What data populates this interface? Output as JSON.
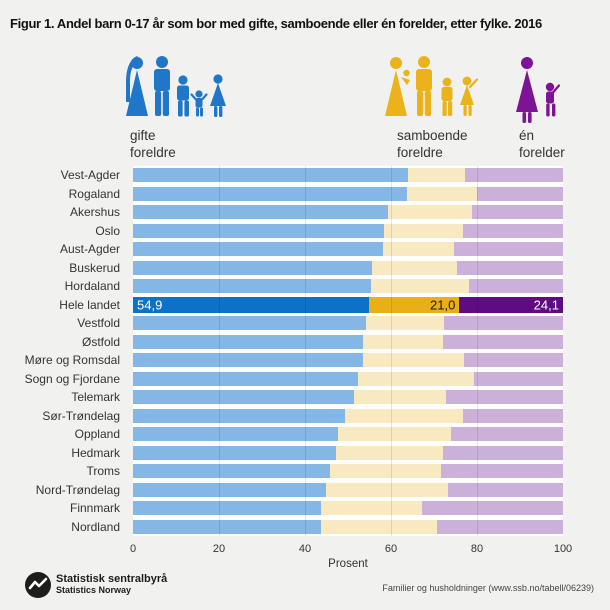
{
  "figure": {
    "title": "Figur 1. Andel barn 0-17 år som bor med gifte, samboende eller én forelder, etter fylke. 2016"
  },
  "legend": {
    "items": [
      {
        "id": "gifte",
        "line1": "gifte",
        "line2": "foreldre",
        "icon": "married-family-icon"
      },
      {
        "id": "samboende",
        "line1": "samboende",
        "line2": "foreldre",
        "icon": "cohabiting-family-icon"
      },
      {
        "id": "en-forelder",
        "line1": "én",
        "line2": "forelder",
        "icon": "single-parent-icon"
      }
    ]
  },
  "axis": {
    "xlabel": "Prosent",
    "ticks": [
      0,
      20,
      40,
      60,
      80,
      100
    ]
  },
  "chart_data": {
    "type": "bar",
    "stacked": true,
    "orientation": "horizontal",
    "xlim": [
      0,
      100
    ],
    "gridlines": [
      20,
      40,
      60,
      80
    ],
    "series": [
      {
        "key": "gifte-foreldre",
        "name": "gifte foreldre"
      },
      {
        "key": "samboende-foreldre",
        "name": "samboende foreldre"
      },
      {
        "key": "en-forelder",
        "name": "én forelder"
      }
    ],
    "colors": {
      "light": [
        "#85b7e6",
        "#f9e9c0",
        "#cbb1d9"
      ],
      "dark": [
        "#0d72c6",
        "#e9af19",
        "#5f0c82"
      ],
      "value_label_colors": [
        "#ffffff",
        "#1a1a1a",
        "#ffffff"
      ],
      "icons": {
        "married": "#2076c8",
        "cohabiting": "#eab319",
        "single": "#7d1395"
      },
      "background": "#f1f1ef"
    },
    "rows": [
      {
        "name": "Vest-Agder",
        "values": [
          64.0,
          13.2,
          22.8
        ],
        "highlight": false
      },
      {
        "name": "Rogaland",
        "values": [
          63.7,
          16.3,
          20.0
        ],
        "highlight": false
      },
      {
        "name": "Akershus",
        "values": [
          59.3,
          19.5,
          21.2
        ],
        "highlight": false
      },
      {
        "name": "Oslo",
        "values": [
          58.3,
          18.4,
          23.3
        ],
        "highlight": false
      },
      {
        "name": "Aust-Agder",
        "values": [
          58.2,
          16.5,
          25.3
        ],
        "highlight": false
      },
      {
        "name": "Buskerud",
        "values": [
          55.5,
          19.8,
          24.7
        ],
        "highlight": false
      },
      {
        "name": "Hordaland",
        "values": [
          55.3,
          22.8,
          21.9
        ],
        "highlight": false
      },
      {
        "name": "Hele landet",
        "values": [
          54.9,
          21.0,
          24.1
        ],
        "highlight": true,
        "value_labels": [
          "54,9",
          "21,0",
          "24,1"
        ]
      },
      {
        "name": "Vestfold",
        "values": [
          54.2,
          18.1,
          27.7
        ],
        "highlight": false
      },
      {
        "name": "Østfold",
        "values": [
          53.6,
          18.5,
          27.9
        ],
        "highlight": false
      },
      {
        "name": "Møre og Romsdal",
        "values": [
          53.5,
          23.5,
          23.0
        ],
        "highlight": false
      },
      {
        "name": "Sogn og Fjordane",
        "values": [
          52.3,
          27.0,
          20.7
        ],
        "highlight": false
      },
      {
        "name": "Telemark",
        "values": [
          51.4,
          21.4,
          27.2
        ],
        "highlight": false
      },
      {
        "name": "Sør-Trøndelag",
        "values": [
          49.3,
          27.4,
          23.3
        ],
        "highlight": false
      },
      {
        "name": "Oppland",
        "values": [
          47.7,
          26.3,
          26.0
        ],
        "highlight": false
      },
      {
        "name": "Hedmark",
        "values": [
          47.2,
          24.9,
          27.9
        ],
        "highlight": false
      },
      {
        "name": "Troms",
        "values": [
          45.8,
          25.8,
          28.4
        ],
        "highlight": false
      },
      {
        "name": "Nord-Trøndelag",
        "values": [
          44.9,
          28.4,
          26.7
        ],
        "highlight": false
      },
      {
        "name": "Finnmark",
        "values": [
          43.7,
          23.5,
          32.8
        ],
        "highlight": false
      },
      {
        "name": "Nordland",
        "values": [
          43.7,
          27.0,
          29.3
        ],
        "highlight": false
      }
    ]
  },
  "footer": {
    "org_line1": "Statistisk sentralbyrå",
    "org_line2": "Statistics Norway",
    "source": "Familier og husholdninger (www.ssb.no/tabell/06239)"
  }
}
